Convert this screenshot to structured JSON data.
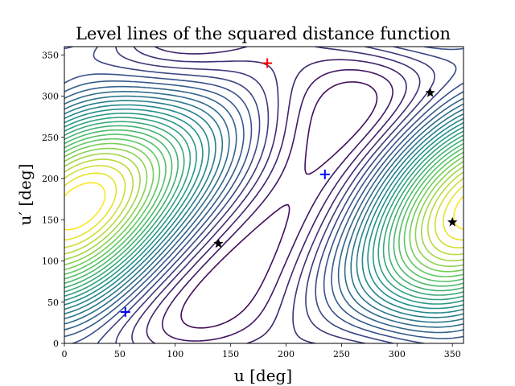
{
  "chart_data": {
    "type": "contour",
    "title": "Level lines of the squared distance function",
    "xlabel": "u [deg]",
    "ylabel": "u′ [deg]",
    "xlim": [
      0,
      360
    ],
    "ylim": [
      0,
      360
    ],
    "x_ticks": [
      0,
      50,
      100,
      150,
      200,
      250,
      300,
      350
    ],
    "y_ticks": [
      0,
      50,
      100,
      150,
      200,
      250,
      300,
      350
    ],
    "x_tick_labels": [
      "0",
      "50",
      "100",
      "150",
      "200",
      "250",
      "300",
      "350"
    ],
    "y_tick_labels": [
      "0",
      "50",
      "100",
      "150",
      "200",
      "250",
      "300",
      "350"
    ],
    "colormap": "viridis",
    "colormap_colors": [
      "#440154",
      "#3b528b",
      "#21918c",
      "#5ec962",
      "#fde725"
    ],
    "grid": false,
    "legend": false,
    "markers": [
      {
        "kind": "plus",
        "color": "#0000ff",
        "x": 55,
        "y": 38
      },
      {
        "kind": "plus",
        "color": "#0000ff",
        "x": 235,
        "y": 205
      },
      {
        "kind": "plus",
        "color": "#ff0000",
        "x": 183,
        "y": 340
      },
      {
        "kind": "star",
        "color": "#000000",
        "x": 139,
        "y": 121
      },
      {
        "kind": "star",
        "color": "#000000",
        "x": 330,
        "y": 304
      },
      {
        "kind": "star",
        "color": "#000000",
        "x": 350,
        "y": 147
      }
    ]
  }
}
